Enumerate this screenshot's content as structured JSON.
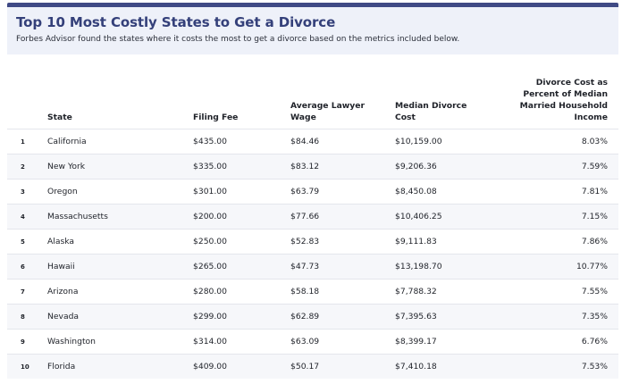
{
  "header": {
    "title": "Top 10 Most Costly States to Get a Divorce",
    "subtitle": "Forbes Advisor found the states where it costs the most to get a divorce based on the metrics included below."
  },
  "colors": {
    "accent": "#3f4a85",
    "title": "#34407a",
    "header_bg": "#eef1f9",
    "row_alt": "#f6f7fa"
  },
  "chart_data": {
    "type": "table",
    "columns": [
      "State",
      "Filing Fee",
      "Average Lawyer Wage",
      "Median Divorce Cost",
      "Divorce Cost as Percent of Median Married Household Income"
    ],
    "rows": [
      {
        "rank": "1",
        "state": "California",
        "fee": "$435.00",
        "wage": "$84.46",
        "cost": "$10,159.00",
        "pct": "8.03%"
      },
      {
        "rank": "2",
        "state": "New York",
        "fee": "$335.00",
        "wage": "$83.12",
        "cost": "$9,206.36",
        "pct": "7.59%"
      },
      {
        "rank": "3",
        "state": "Oregon",
        "fee": "$301.00",
        "wage": "$63.79",
        "cost": "$8,450.08",
        "pct": "7.81%"
      },
      {
        "rank": "4",
        "state": "Massachusetts",
        "fee": "$200.00",
        "wage": "$77.66",
        "cost": "$10,406.25",
        "pct": "7.15%"
      },
      {
        "rank": "5",
        "state": "Alaska",
        "fee": "$250.00",
        "wage": "$52.83",
        "cost": "$9,111.83",
        "pct": "7.86%"
      },
      {
        "rank": "6",
        "state": "Hawaii",
        "fee": "$265.00",
        "wage": "$47.73",
        "cost": "$13,198.70",
        "pct": "10.77%"
      },
      {
        "rank": "7",
        "state": "Arizona",
        "fee": "$280.00",
        "wage": "$58.18",
        "cost": "$7,788.32",
        "pct": "7.55%"
      },
      {
        "rank": "8",
        "state": "Nevada",
        "fee": "$299.00",
        "wage": "$62.89",
        "cost": "$7,395.63",
        "pct": "7.35%"
      },
      {
        "rank": "9",
        "state": "Washington",
        "fee": "$314.00",
        "wage": "$63.09",
        "cost": "$8,399.17",
        "pct": "6.76%"
      },
      {
        "rank": "10",
        "state": "Florida",
        "fee": "$409.00",
        "wage": "$50.17",
        "cost": "$7,410.18",
        "pct": "7.53%"
      }
    ]
  }
}
